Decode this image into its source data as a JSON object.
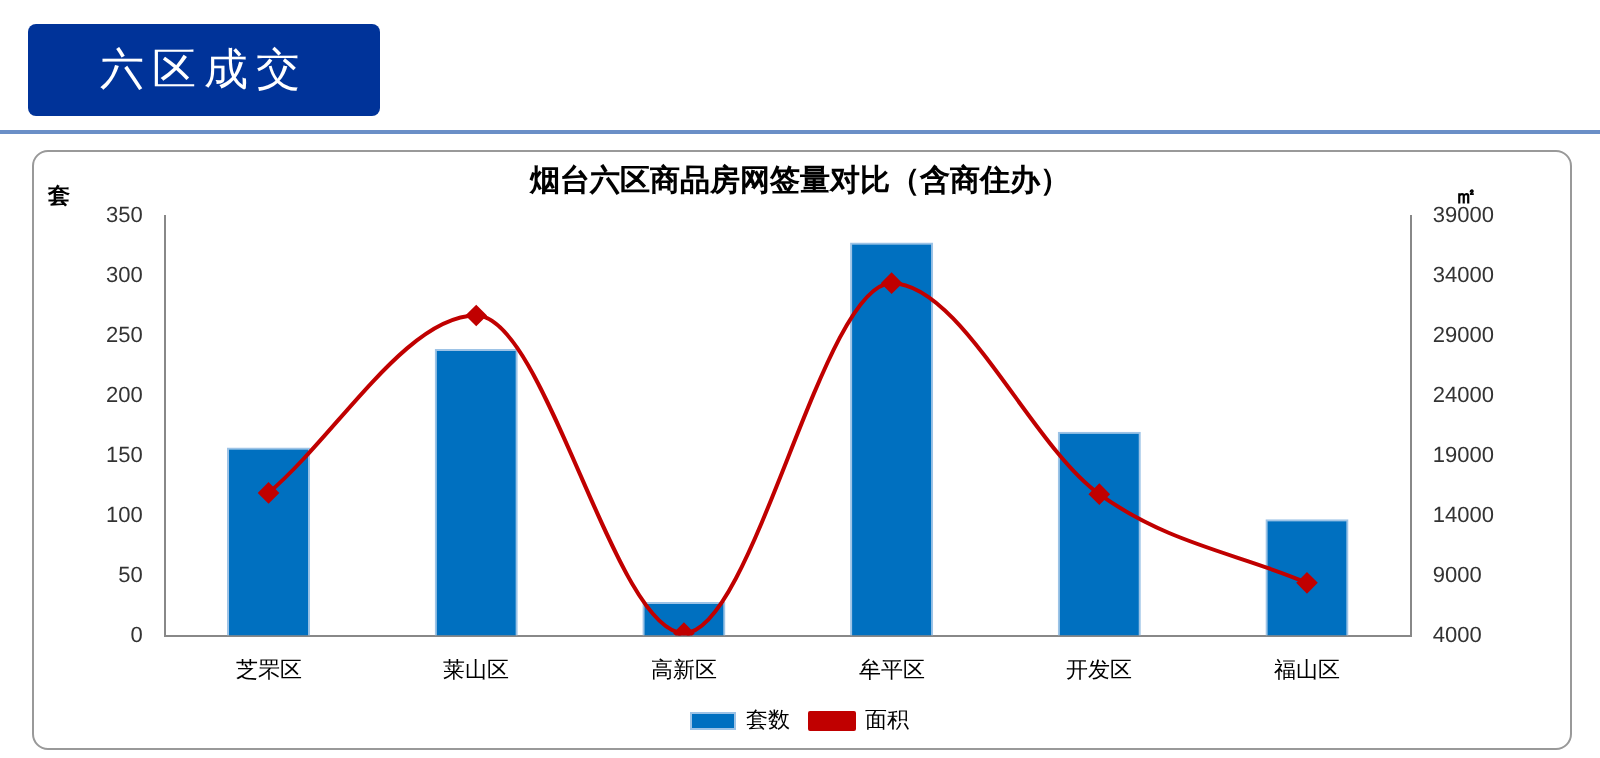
{
  "chart_data": {
    "type": "bar",
    "title": "烟台六区商品房网签量对比（含商住办）",
    "ylabel": "套",
    "y2label": "㎡",
    "annotations": [
      "六区成交"
    ],
    "categories": [
      "芝罘区",
      "莱山区",
      "高新区",
      "牟平区",
      "开发区",
      "福山区"
    ],
    "series": [
      {
        "name": "套数",
        "color": "#0070c0",
        "values": [
          157,
          239,
          28,
          328,
          170,
          97
        ]
      },
      {
        "name": "面积",
        "type": "line",
        "axis": "y2",
        "color": "#c00000",
        "marker": "diamond",
        "values": [
          15900,
          30700,
          4200,
          33400,
          15800,
          8400
        ]
      }
    ],
    "ylim": [
      0,
      350
    ],
    "yticks": [
      0,
      50,
      100,
      150,
      200,
      250,
      300,
      350
    ],
    "y2lim": [
      4000,
      39000
    ],
    "y2ticks": [
      4000,
      9000,
      14000,
      19000,
      24000,
      29000,
      34000,
      39000
    ],
    "grid": false,
    "legend": "bottom"
  }
}
